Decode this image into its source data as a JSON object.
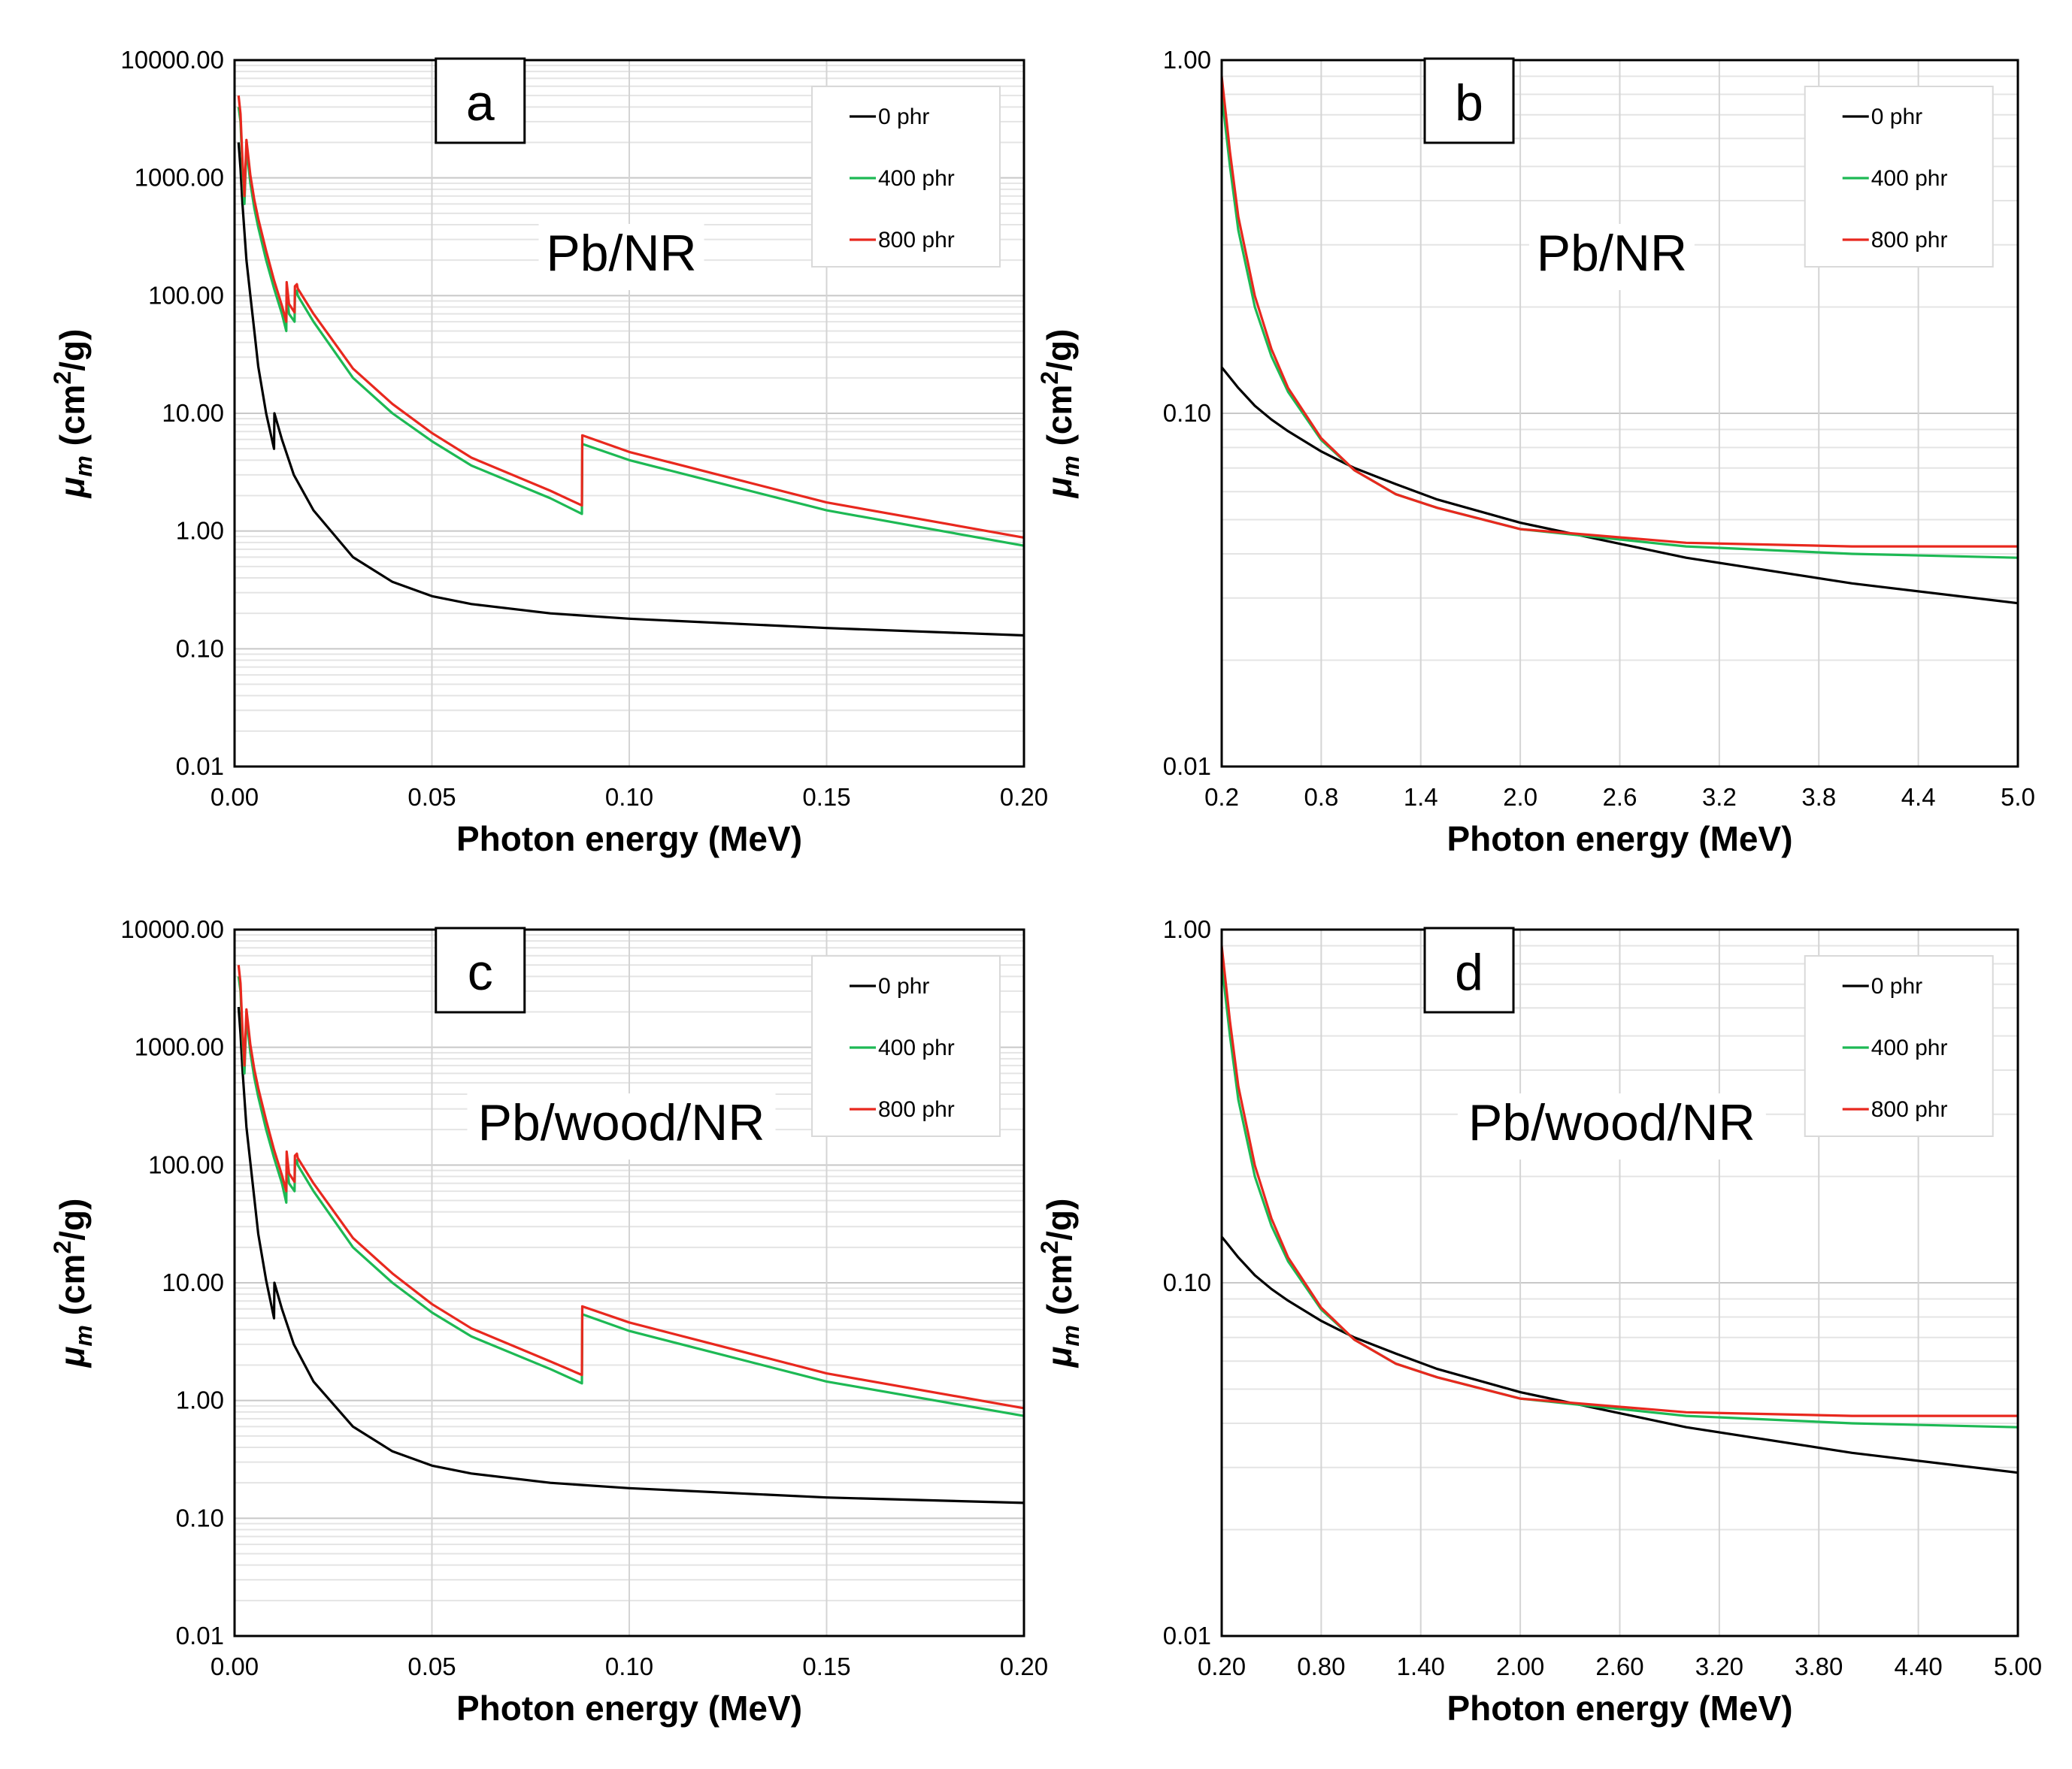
{
  "chart_data": [
    {
      "panel": "a",
      "type": "line",
      "annotation": "Pb/NR",
      "xlabel": "Photon energy (MeV)",
      "ylabel": "μm (cm2/g)",
      "ylabel_parts": {
        "mu": "μ",
        "sub": "m",
        "open": " (cm",
        "sup": "2",
        "close": "/g)"
      },
      "xlim": [
        0,
        0.2
      ],
      "ylim": [
        0.01,
        10000
      ],
      "yscale": "log",
      "grid": true,
      "legend_position": "top-right",
      "x_ticks": [
        "0.00",
        "0.05",
        "0.10",
        "0.15",
        "0.20"
      ],
      "y_ticks": [
        "10000.00",
        "1000.00",
        "100.00",
        "10.00",
        "1.00",
        "0.10",
        "0.01"
      ],
      "series": [
        {
          "name": "0 phr",
          "color": "#000000",
          "x": [
            0.001,
            0.0015,
            0.002,
            0.003,
            0.004,
            0.005,
            0.006,
            0.008,
            0.01,
            0.0101,
            0.012,
            0.015,
            0.02,
            0.03,
            0.04,
            0.05,
            0.06,
            0.08,
            0.1,
            0.15,
            0.2
          ],
          "y": [
            2000,
            1200,
            600,
            200,
            100,
            50,
            25,
            10,
            5,
            10,
            6,
            3,
            1.5,
            0.6,
            0.37,
            0.28,
            0.24,
            0.2,
            0.18,
            0.15,
            0.13
          ]
        },
        {
          "name": "400 phr",
          "color": "#1db954",
          "x": [
            0.001,
            0.0015,
            0.002,
            0.0025,
            0.003,
            0.004,
            0.005,
            0.006,
            0.008,
            0.01,
            0.012,
            0.0131,
            0.0132,
            0.0138,
            0.0152,
            0.0153,
            0.0158,
            0.016,
            0.02,
            0.03,
            0.04,
            0.05,
            0.06,
            0.08,
            0.088,
            0.0881,
            0.1,
            0.15,
            0.2
          ],
          "y": [
            4000,
            3000,
            1200,
            600,
            1800,
            900,
            550,
            380,
            200,
            115,
            70,
            50,
            110,
            70,
            60,
            100,
            110,
            100,
            60,
            20,
            10,
            5.8,
            3.6,
            1.9,
            1.4,
            5.5,
            4,
            1.5,
            0.75
          ]
        },
        {
          "name": "800 phr",
          "color": "#e8281e",
          "x": [
            0.001,
            0.0015,
            0.002,
            0.0025,
            0.003,
            0.004,
            0.005,
            0.006,
            0.008,
            0.01,
            0.012,
            0.0131,
            0.0132,
            0.0138,
            0.0152,
            0.0153,
            0.0158,
            0.016,
            0.02,
            0.03,
            0.04,
            0.05,
            0.06,
            0.08,
            0.088,
            0.0881,
            0.1,
            0.15,
            0.2
          ],
          "y": [
            5000,
            3500,
            1400,
            700,
            2100,
            1050,
            650,
            450,
            240,
            135,
            82,
            60,
            130,
            85,
            72,
            120,
            125,
            115,
            70,
            24,
            12,
            6.8,
            4.2,
            2.2,
            1.65,
            6.5,
            4.7,
            1.75,
            0.88
          ]
        }
      ]
    },
    {
      "panel": "b",
      "type": "line",
      "annotation": "Pb/NR",
      "xlabel": "Photon energy (MeV)",
      "ylabel": "μm (cm2/g)",
      "ylabel_parts": {
        "mu": "μ",
        "sub": "m",
        "open": " (cm",
        "sup": "2",
        "close": "/g)"
      },
      "xlim": [
        0.2,
        5.0
      ],
      "ylim": [
        0.01,
        1
      ],
      "yscale": "log",
      "grid": true,
      "legend_position": "top-right",
      "x_ticks": [
        "0.2",
        "0.8",
        "1.4",
        "2.0",
        "2.6",
        "3.2",
        "3.8",
        "4.4",
        "5.0"
      ],
      "y_ticks": [
        "1.00",
        "0.10",
        "0.01"
      ],
      "series": [
        {
          "name": "0 phr",
          "color": "#000000",
          "x": [
            0.2,
            0.3,
            0.4,
            0.5,
            0.6,
            0.8,
            1.0,
            1.25,
            1.5,
            2.0,
            3.0,
            4.0,
            5.0
          ],
          "y": [
            0.135,
            0.118,
            0.105,
            0.096,
            0.089,
            0.078,
            0.07,
            0.063,
            0.057,
            0.049,
            0.039,
            0.033,
            0.029
          ]
        },
        {
          "name": "400 phr",
          "color": "#1db954",
          "x": [
            0.2,
            0.25,
            0.3,
            0.4,
            0.5,
            0.6,
            0.8,
            1.0,
            1.25,
            1.5,
            2.0,
            3.0,
            4.0,
            5.0
          ],
          "y": [
            0.8,
            0.5,
            0.33,
            0.2,
            0.145,
            0.115,
            0.084,
            0.069,
            0.059,
            0.054,
            0.047,
            0.042,
            0.04,
            0.039
          ]
        },
        {
          "name": "800 phr",
          "color": "#e8281e",
          "x": [
            0.2,
            0.25,
            0.3,
            0.4,
            0.5,
            0.6,
            0.8,
            1.0,
            1.25,
            1.5,
            2.0,
            3.0,
            4.0,
            5.0
          ],
          "y": [
            0.9,
            0.55,
            0.36,
            0.215,
            0.152,
            0.118,
            0.085,
            0.069,
            0.059,
            0.054,
            0.047,
            0.043,
            0.042,
            0.042
          ]
        }
      ]
    },
    {
      "panel": "c",
      "type": "line",
      "annotation": "Pb/wood/NR",
      "xlabel": "Photon energy (MeV)",
      "ylabel": "μm (cm2/g)",
      "ylabel_parts": {
        "mu": "μ",
        "sub": "m",
        "open": " (cm",
        "sup": "2",
        "close": "/g)"
      },
      "xlim": [
        0,
        0.2
      ],
      "ylim": [
        0.01,
        10000
      ],
      "yscale": "log",
      "grid": true,
      "legend_position": "top-right",
      "x_ticks": [
        "0.00",
        "0.05",
        "0.10",
        "0.15",
        "0.20"
      ],
      "y_ticks": [
        "10000.00",
        "1000.00",
        "100.00",
        "10.00",
        "1.00",
        "0.10",
        "0.01"
      ],
      "series": [
        {
          "name": "0 phr",
          "color": "#000000",
          "x": [
            0.001,
            0.0015,
            0.002,
            0.003,
            0.004,
            0.005,
            0.006,
            0.008,
            0.01,
            0.0101,
            0.012,
            0.015,
            0.02,
            0.03,
            0.04,
            0.05,
            0.06,
            0.08,
            0.1,
            0.15,
            0.2
          ],
          "y": [
            2200,
            1300,
            650,
            210,
            105,
            52,
            26,
            10.5,
            5,
            10,
            6,
            3,
            1.45,
            0.6,
            0.37,
            0.28,
            0.24,
            0.2,
            0.18,
            0.15,
            0.135
          ]
        },
        {
          "name": "400 phr",
          "color": "#1db954",
          "x": [
            0.001,
            0.0015,
            0.002,
            0.0025,
            0.003,
            0.004,
            0.005,
            0.006,
            0.008,
            0.01,
            0.012,
            0.0131,
            0.0132,
            0.0138,
            0.0152,
            0.0153,
            0.0158,
            0.016,
            0.02,
            0.03,
            0.04,
            0.05,
            0.06,
            0.08,
            0.088,
            0.0881,
            0.1,
            0.15,
            0.2
          ],
          "y": [
            4000,
            3000,
            1200,
            600,
            1800,
            900,
            550,
            380,
            200,
            115,
            70,
            48,
            110,
            70,
            60,
            100,
            110,
            100,
            60,
            20,
            10,
            5.6,
            3.5,
            1.85,
            1.4,
            5.4,
            3.9,
            1.45,
            0.74
          ]
        },
        {
          "name": "800 phr",
          "color": "#e8281e",
          "x": [
            0.001,
            0.0015,
            0.002,
            0.0025,
            0.003,
            0.004,
            0.005,
            0.006,
            0.008,
            0.01,
            0.012,
            0.0131,
            0.0132,
            0.0138,
            0.0152,
            0.0153,
            0.0158,
            0.016,
            0.02,
            0.03,
            0.04,
            0.05,
            0.06,
            0.08,
            0.088,
            0.0881,
            0.1,
            0.15,
            0.2
          ],
          "y": [
            5000,
            3500,
            1400,
            700,
            2100,
            1050,
            650,
            450,
            240,
            135,
            82,
            60,
            130,
            85,
            72,
            120,
            125,
            115,
            70,
            24,
            12,
            6.6,
            4.1,
            2.15,
            1.65,
            6.3,
            4.6,
            1.7,
            0.86
          ]
        }
      ]
    },
    {
      "panel": "d",
      "type": "line",
      "annotation": "Pb/wood/NR",
      "xlabel": "Photon energy (MeV)",
      "ylabel": "μm (cm2/g)",
      "ylabel_parts": {
        "mu": "μ",
        "sub": "m",
        "open": " (cm",
        "sup": "2",
        "close": "/g)"
      },
      "xlim": [
        0.2,
        5.0
      ],
      "ylim": [
        0.01,
        1
      ],
      "yscale": "log",
      "grid": true,
      "legend_position": "top-right",
      "x_ticks": [
        "0.20",
        "0.80",
        "1.40",
        "2.00",
        "2.60",
        "3.20",
        "3.80",
        "4.40",
        "5.00"
      ],
      "y_ticks": [
        "1.00",
        "0.10",
        "0.01"
      ],
      "series": [
        {
          "name": "0 phr",
          "color": "#000000",
          "x": [
            0.2,
            0.3,
            0.4,
            0.5,
            0.6,
            0.8,
            1.0,
            1.25,
            1.5,
            2.0,
            3.0,
            4.0,
            5.0
          ],
          "y": [
            0.135,
            0.118,
            0.105,
            0.096,
            0.089,
            0.078,
            0.07,
            0.063,
            0.057,
            0.049,
            0.039,
            0.033,
            0.029
          ]
        },
        {
          "name": "400 phr",
          "color": "#1db954",
          "x": [
            0.2,
            0.25,
            0.3,
            0.4,
            0.5,
            0.6,
            0.8,
            1.0,
            1.25,
            1.5,
            2.0,
            3.0,
            4.0,
            5.0
          ],
          "y": [
            0.8,
            0.5,
            0.33,
            0.2,
            0.145,
            0.115,
            0.084,
            0.069,
            0.059,
            0.054,
            0.047,
            0.042,
            0.04,
            0.039
          ]
        },
        {
          "name": "800 phr",
          "color": "#e8281e",
          "x": [
            0.2,
            0.25,
            0.3,
            0.4,
            0.5,
            0.6,
            0.8,
            1.0,
            1.25,
            1.5,
            2.0,
            3.0,
            4.0,
            5.0
          ],
          "y": [
            0.9,
            0.55,
            0.36,
            0.215,
            0.152,
            0.118,
            0.085,
            0.069,
            0.059,
            0.054,
            0.047,
            0.043,
            0.042,
            0.042
          ]
        }
      ]
    }
  ]
}
